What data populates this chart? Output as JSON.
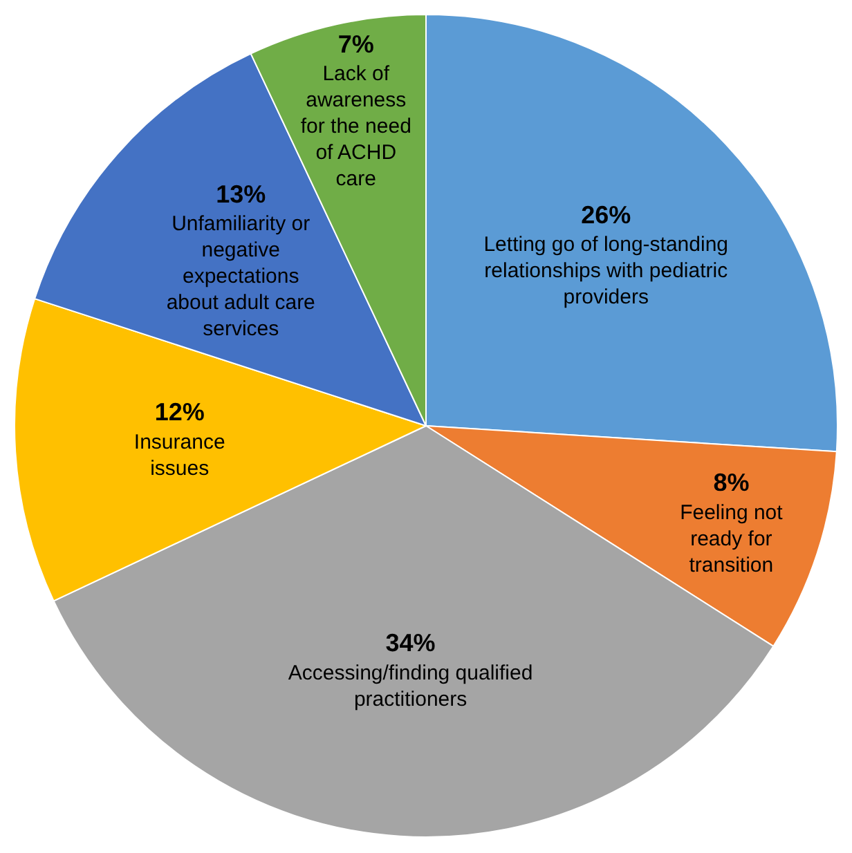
{
  "chart_data": {
    "type": "pie",
    "categories": [
      "Letting go of long-standing relationships with pediatric providers",
      "Feeling not ready for transition",
      "Accessing/finding qualified practitioners",
      "Insurance issues",
      "Unfamiliarity or negative expectations about adult care services",
      "Lack of awareness for the need of ACHD care"
    ],
    "values": [
      26,
      8,
      34,
      12,
      13,
      7
    ],
    "colors": [
      "#5b9bd5",
      "#ed7d31",
      "#a5a5a5",
      "#ffc000",
      "#4472c4",
      "#70ad47"
    ],
    "value_labels": [
      "26%",
      "8%",
      "34%",
      "12%",
      "13%",
      "7%"
    ],
    "legend": false
  }
}
